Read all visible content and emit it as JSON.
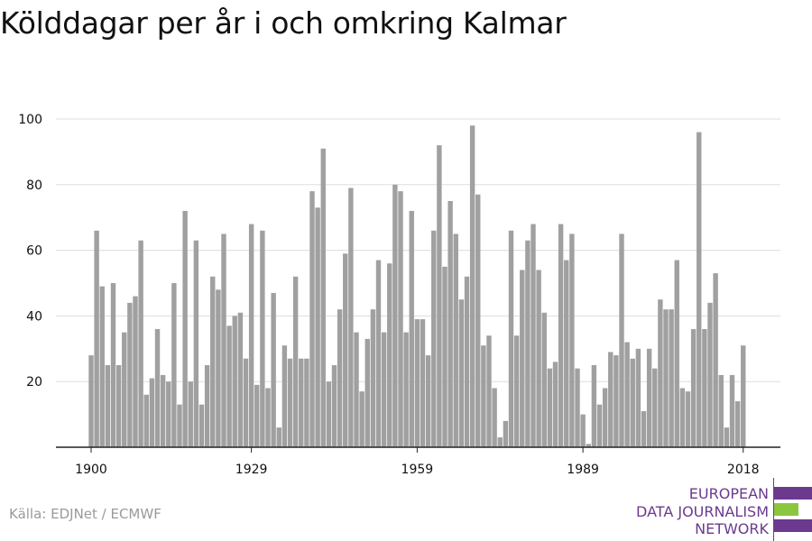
{
  "title": "Kölddagar per år i och omkring Kalmar",
  "source": "Källa: EDJNet / ECMWF",
  "logo": {
    "lines": [
      "EUROPEAN",
      "DATA JOURNALISM",
      "NETWORK"
    ],
    "colors": {
      "purple": "#6b3a8f",
      "green": "#8cc63f"
    }
  },
  "colors": {
    "bar": "#a0a0a0",
    "grid": "#dddddd",
    "axis": "#222222",
    "text": "#111111",
    "source": "#9a9a9a"
  },
  "chart_data": {
    "type": "bar",
    "title": "Kölddagar per år i och omkring Kalmar",
    "xlabel": "",
    "ylabel": "",
    "ylim": [
      0,
      100
    ],
    "yticks": [
      20,
      40,
      60,
      80,
      100
    ],
    "xticks": [
      1900,
      1929,
      1959,
      1989,
      2018
    ],
    "grid": true,
    "categories": [
      1900,
      1901,
      1902,
      1903,
      1904,
      1905,
      1906,
      1907,
      1908,
      1909,
      1910,
      1911,
      1912,
      1913,
      1914,
      1915,
      1916,
      1917,
      1918,
      1919,
      1920,
      1921,
      1922,
      1923,
      1924,
      1925,
      1926,
      1927,
      1928,
      1929,
      1930,
      1931,
      1932,
      1933,
      1934,
      1935,
      1936,
      1937,
      1938,
      1939,
      1940,
      1941,
      1942,
      1943,
      1944,
      1945,
      1946,
      1947,
      1948,
      1949,
      1950,
      1951,
      1952,
      1953,
      1954,
      1955,
      1956,
      1957,
      1958,
      1959,
      1960,
      1961,
      1962,
      1963,
      1964,
      1965,
      1966,
      1967,
      1968,
      1969,
      1970,
      1971,
      1972,
      1973,
      1974,
      1975,
      1976,
      1977,
      1978,
      1979,
      1980,
      1981,
      1982,
      1983,
      1984,
      1985,
      1986,
      1987,
      1988,
      1989,
      1990,
      1991,
      1992,
      1993,
      1994,
      1995,
      1996,
      1997,
      1998,
      1999,
      2000,
      2001,
      2002,
      2003,
      2004,
      2005,
      2006,
      2007,
      2008,
      2009,
      2010,
      2011,
      2012,
      2013,
      2014,
      2015,
      2016,
      2017,
      2018
    ],
    "values": [
      28,
      66,
      49,
      25,
      50,
      25,
      35,
      44,
      46,
      63,
      16,
      21,
      36,
      22,
      20,
      50,
      13,
      72,
      20,
      63,
      13,
      25,
      52,
      48,
      65,
      37,
      40,
      41,
      27,
      68,
      19,
      66,
      18,
      47,
      6,
      31,
      27,
      52,
      27,
      27,
      78,
      73,
      91,
      20,
      25,
      42,
      59,
      79,
      35,
      17,
      33,
      42,
      57,
      35,
      56,
      80,
      78,
      35,
      72,
      39,
      39,
      28,
      66,
      92,
      55,
      75,
      65,
      45,
      52,
      98,
      77,
      31,
      34,
      18,
      3,
      8,
      66,
      34,
      54,
      63,
      68,
      54,
      41,
      24,
      26,
      68,
      57,
      65,
      24,
      10,
      1,
      25,
      13,
      18,
      29,
      28,
      65,
      32,
      27,
      30,
      11,
      30,
      24,
      45,
      42,
      42,
      57,
      18,
      17,
      36,
      96,
      36,
      44,
      53,
      22,
      6,
      22,
      14,
      31
    ]
  }
}
